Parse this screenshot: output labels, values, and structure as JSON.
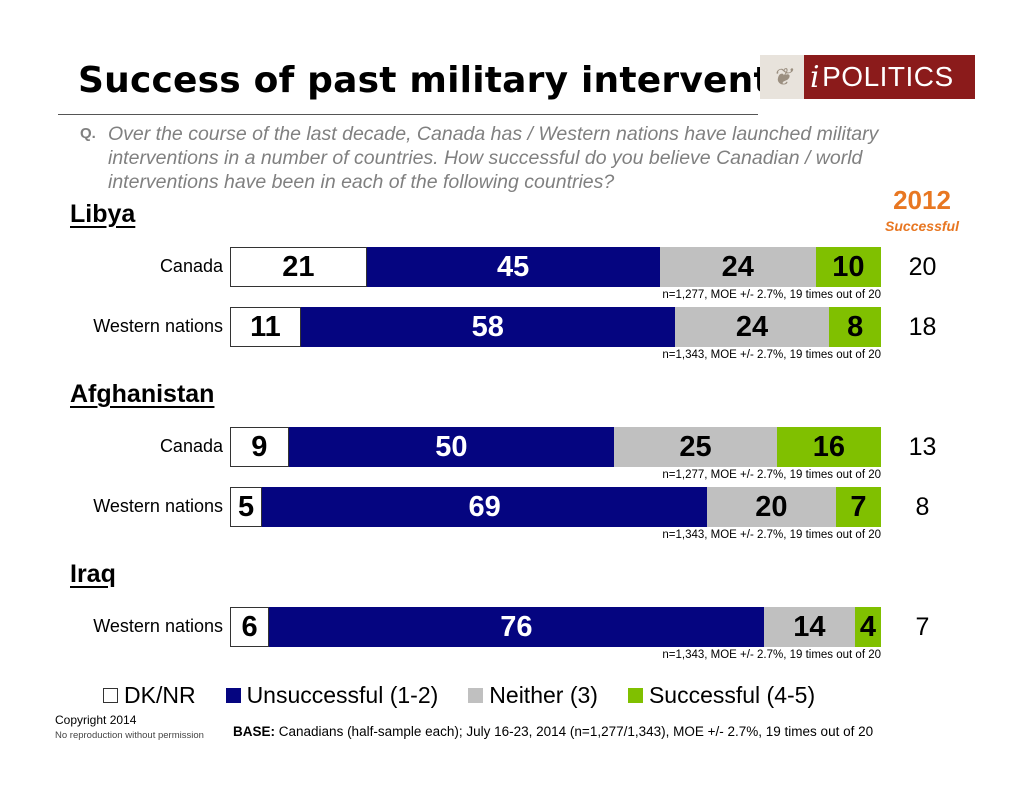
{
  "title": "Success of past military interventions",
  "logo": {
    "mark": "i",
    "text": "POLITICS"
  },
  "question": {
    "label": "Q.",
    "text": "Over the course of the last decade, Canada has / Western nations have launched military interventions in a number of countries. How successful do you believe Canadian / world interventions have been in each of the following countries?"
  },
  "comparison_header": {
    "year": "2012",
    "label": "Successful"
  },
  "legend": [
    {
      "label": "DK/NR",
      "color": "#ffffff"
    },
    {
      "label": "Unsuccessful (1-2)",
      "color": "#050580"
    },
    {
      "label": "Neither (3)",
      "color": "#c0c0c0"
    },
    {
      "label": "Successful (4-5)",
      "color": "#80c000"
    }
  ],
  "chart_data": {
    "type": "bar",
    "orientation": "horizontal",
    "stacked": true,
    "percent_scale": [
      0,
      100
    ],
    "series": [
      "DK/NR",
      "Unsuccessful (1-2)",
      "Neither (3)",
      "Successful (4-5)"
    ],
    "groups": [
      {
        "name": "Libya",
        "rows": [
          {
            "label": "Canada",
            "values": [
              21,
              45,
              24,
              10
            ],
            "note": "n=1,277, MOE +/- 2.7%, 19 times out of 20",
            "successful_2012": "20"
          },
          {
            "label": "Western nations",
            "values": [
              11,
              58,
              24,
              8
            ],
            "note": "n=1,343, MOE +/- 2.7%, 19 times out of 20",
            "successful_2012": "18"
          }
        ]
      },
      {
        "name": "Afghanistan",
        "rows": [
          {
            "label": "Canada",
            "values": [
              9,
              50,
              25,
              16
            ],
            "note": "n=1,277, MOE +/- 2.7%, 19 times out of 20",
            "successful_2012": "13"
          },
          {
            "label": "Western nations",
            "values": [
              5,
              69,
              20,
              7
            ],
            "note": "n=1,343, MOE +/- 2.7%, 19 times out of 20",
            "successful_2012": "8"
          }
        ]
      },
      {
        "name": "Iraq",
        "rows": [
          {
            "label": "Western nations",
            "values": [
              6,
              76,
              14,
              4
            ],
            "note": "n=1,343, MOE +/- 2.7%, 19 times out of 20",
            "successful_2012": "7"
          }
        ]
      }
    ]
  },
  "footer": {
    "copyright": "Copyright 2014",
    "no_reproduction": "No reproduction without permission",
    "base_label": "BASE:",
    "base_text": " Canadians (half-sample each); July 16-23, 2014 (n=1,277/1,343), MOE +/- 2.7%, 19 times out of 20"
  }
}
